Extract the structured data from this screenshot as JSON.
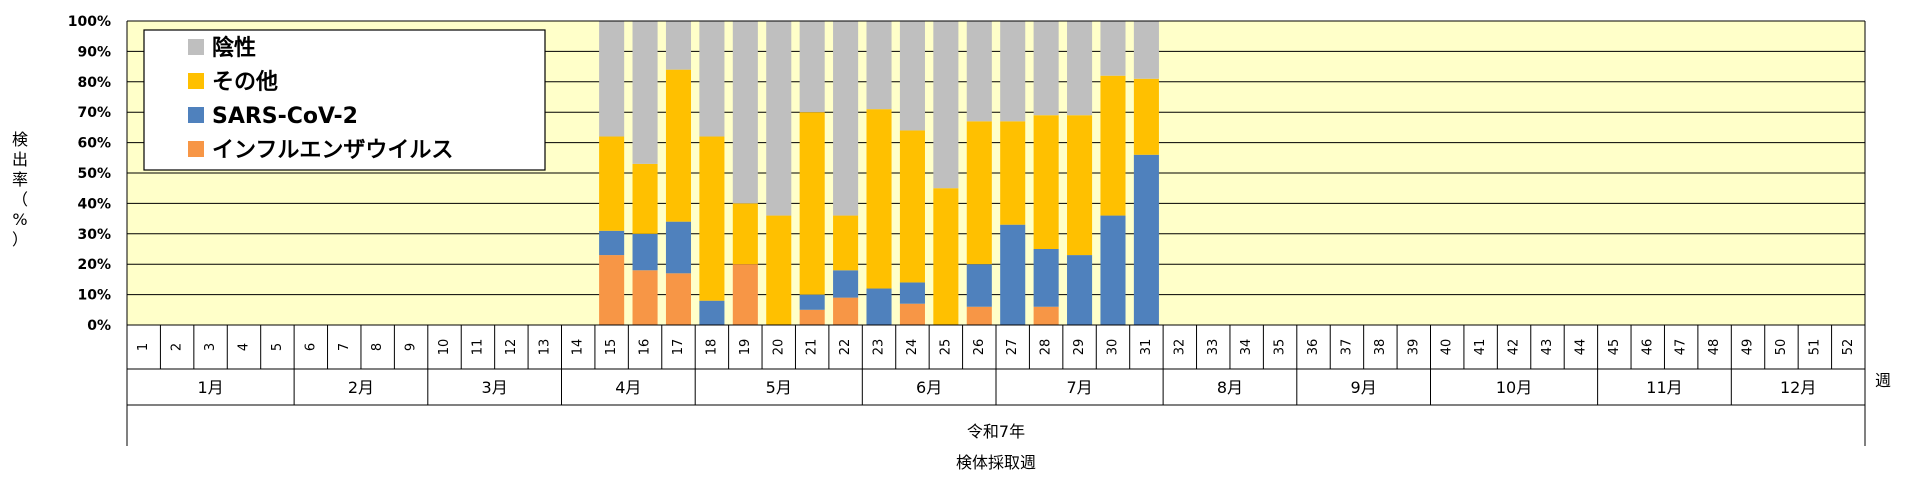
{
  "chart_data": {
    "type": "bar",
    "stacked": true,
    "percent": true,
    "ylabel_chars": [
      "検",
      "出",
      "率",
      "（",
      "%",
      "）"
    ],
    "y_ticks": [
      "0%",
      "10%",
      "20%",
      "30%",
      "40%",
      "50%",
      "60%",
      "70%",
      "80%",
      "90%",
      "100%"
    ],
    "ylim": [
      0,
      100
    ],
    "grid": true,
    "legend_position": "top-left",
    "x_unit_label": "週",
    "year_label": "令和7年",
    "xlabel": "検体採取週",
    "months": [
      {
        "label": "1月",
        "from": 1,
        "to": 5
      },
      {
        "label": "2月",
        "from": 6,
        "to": 9
      },
      {
        "label": "3月",
        "from": 10,
        "to": 13
      },
      {
        "label": "4月",
        "from": 14,
        "to": 17
      },
      {
        "label": "5月",
        "from": 18,
        "to": 22
      },
      {
        "label": "6月",
        "from": 23,
        "to": 26
      },
      {
        "label": "7月",
        "from": 27,
        "to": 31
      },
      {
        "label": "8月",
        "from": 32,
        "to": 35
      },
      {
        "label": "9月",
        "from": 36,
        "to": 39
      },
      {
        "label": "10月",
        "from": 40,
        "to": 44
      },
      {
        "label": "11月",
        "from": 45,
        "to": 48
      },
      {
        "label": "12月",
        "from": 49,
        "to": 52
      }
    ],
    "categories": [
      "1",
      "2",
      "3",
      "4",
      "5",
      "6",
      "7",
      "8",
      "9",
      "10",
      "11",
      "12",
      "13",
      "14",
      "15",
      "16",
      "17",
      "18",
      "19",
      "20",
      "21",
      "22",
      "23",
      "24",
      "25",
      "26",
      "27",
      "28",
      "29",
      "30",
      "31",
      "32",
      "33",
      "34",
      "35",
      "36",
      "37",
      "38",
      "39",
      "40",
      "41",
      "42",
      "43",
      "44",
      "45",
      "46",
      "47",
      "48",
      "49",
      "50",
      "51",
      "52"
    ],
    "series": [
      {
        "name": "インフルエンザウイルス",
        "color": "#F79646",
        "values": [
          null,
          null,
          null,
          null,
          null,
          null,
          null,
          null,
          null,
          null,
          null,
          null,
          null,
          null,
          23,
          18,
          17,
          0,
          20,
          0,
          5,
          9,
          0,
          7,
          0,
          6,
          0,
          6,
          0,
          0,
          0,
          null,
          null,
          null,
          null,
          null,
          null,
          null,
          null,
          null,
          null,
          null,
          null,
          null,
          null,
          null,
          null,
          null,
          null,
          null,
          null,
          null
        ]
      },
      {
        "name": "SARS-CoV-2",
        "color": "#4F81BD",
        "values": [
          null,
          null,
          null,
          null,
          null,
          null,
          null,
          null,
          null,
          null,
          null,
          null,
          null,
          null,
          8,
          12,
          17,
          8,
          0,
          0,
          5,
          9,
          12,
          7,
          0,
          14,
          33,
          19,
          23,
          36,
          56,
          null,
          null,
          null,
          null,
          null,
          null,
          null,
          null,
          null,
          null,
          null,
          null,
          null,
          null,
          null,
          null,
          null,
          null,
          null,
          null,
          null
        ]
      },
      {
        "name": "その他",
        "color": "#FFC000",
        "values": [
          null,
          null,
          null,
          null,
          null,
          null,
          null,
          null,
          null,
          null,
          null,
          null,
          null,
          null,
          31,
          23,
          50,
          54,
          20,
          36,
          60,
          18,
          59,
          50,
          45,
          47,
          34,
          44,
          46,
          46,
          25,
          null,
          null,
          null,
          null,
          null,
          null,
          null,
          null,
          null,
          null,
          null,
          null,
          null,
          null,
          null,
          null,
          null,
          null,
          null,
          null,
          null
        ]
      },
      {
        "name": "陰性",
        "color": "#BFBFBF",
        "values": [
          null,
          null,
          null,
          null,
          null,
          null,
          null,
          null,
          null,
          null,
          null,
          null,
          null,
          null,
          38,
          47,
          16,
          38,
          60,
          64,
          30,
          64,
          29,
          36,
          55,
          33,
          33,
          31,
          31,
          18,
          19,
          null,
          null,
          null,
          null,
          null,
          null,
          null,
          null,
          null,
          null,
          null,
          null,
          null,
          null,
          null,
          null,
          null,
          null,
          null,
          null,
          null
        ]
      }
    ],
    "legend_order": [
      "陰性",
      "その他",
      "SARS-CoV-2",
      "インフルエンザウイルス"
    ],
    "colors": {
      "plot_background": "#FFFFC9",
      "grid": "#000000"
    }
  }
}
